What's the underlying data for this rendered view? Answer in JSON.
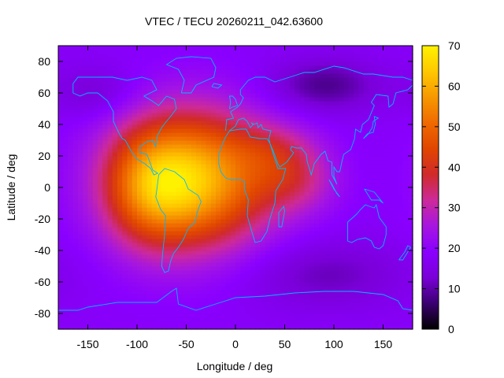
{
  "chart_data": {
    "type": "heatmap",
    "title": "VTEC / TECU 20260211_042.63600",
    "xlabel": "Longitude / deg",
    "ylabel": "Latitude / deg",
    "xlim": [
      -180,
      180
    ],
    "ylim": [
      -90,
      90
    ],
    "xticks": [
      -150,
      -100,
      -50,
      0,
      50,
      100,
      150
    ],
    "yticks": [
      80,
      60,
      40,
      20,
      0,
      -20,
      -40,
      -60,
      -80
    ],
    "colorbar": {
      "range": [
        0,
        70
      ],
      "ticks": [
        70,
        60,
        50,
        40,
        30,
        20,
        10,
        0
      ],
      "colors": [
        "#000000",
        "#3a0070",
        "#7a00d8",
        "#8a00ff",
        "#a616e0",
        "#cc2a9a",
        "#d02a2a",
        "#e04600",
        "#ef6a00",
        "#f79800",
        "#ffc800",
        "#fff200"
      ]
    },
    "field": {
      "background": 18,
      "anomalies": [
        {
          "lon": -45,
          "lat": 5,
          "sigma_lon": 55,
          "sigma_lat": 30,
          "amp": 45
        },
        {
          "lon": -90,
          "lat": 0,
          "sigma_lon": 30,
          "sigma_lat": 25,
          "amp": 15
        },
        {
          "lon": 60,
          "lat": 5,
          "sigma_lon": 30,
          "sigma_lat": 15,
          "amp": 12
        },
        {
          "lon": 40,
          "lat": 25,
          "sigma_lon": 30,
          "sigma_lat": 12,
          "amp": 8
        },
        {
          "lon": 90,
          "lat": 65,
          "sigma_lon": 40,
          "sigma_lat": 12,
          "amp": -10
        },
        {
          "lon": -140,
          "lat": 60,
          "sigma_lon": 30,
          "sigma_lat": 12,
          "amp": -6
        },
        {
          "lon": 90,
          "lat": -55,
          "sigma_lon": 60,
          "sigma_lat": 15,
          "amp": -7
        }
      ]
    }
  },
  "colors": {
    "coastline": "#00b8ff"
  }
}
